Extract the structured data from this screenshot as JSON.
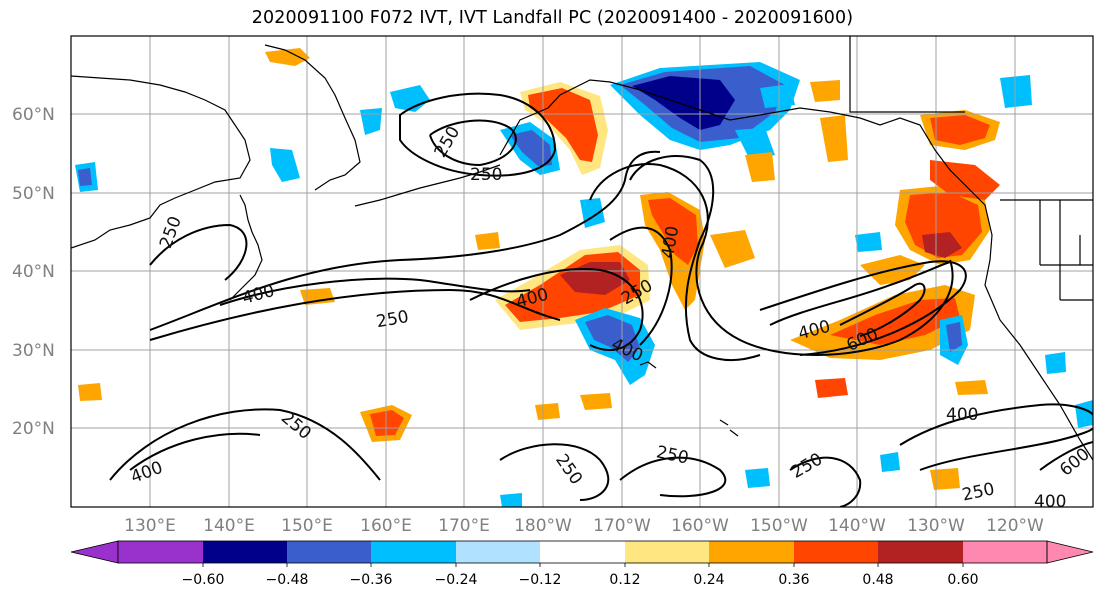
{
  "title": "2020091100 F072 IVT, IVT Landfall PC (2020091400 - 2020091600)",
  "latitude_labels": [
    "60°N",
    "50°N",
    "40°N",
    "30°N",
    "20°N"
  ],
  "longitude_labels": [
    "130°E",
    "140°E",
    "150°E",
    "160°E",
    "170°E",
    "180°W",
    "170°W",
    "160°W",
    "150°W",
    "140°W",
    "130°W",
    "120°W"
  ],
  "contour_labels": [
    "250",
    "250",
    "250",
    "400",
    "250",
    "400",
    "250",
    "400",
    "400",
    "400",
    "600",
    "250",
    "250",
    "250",
    "250",
    "400",
    "600",
    "250",
    "400"
  ],
  "colorbar": {
    "tick_labels": [
      "−0.60",
      "−0.48",
      "−0.36",
      "−0.24",
      "−0.12",
      "0.12",
      "0.24",
      "0.36",
      "0.48",
      "0.60"
    ],
    "colors": [
      "#9932cc",
      "#00008b",
      "#3a5fcd",
      "#00bfff",
      "#b0e2ff",
      "#ffffff",
      "#ffe680",
      "#ffa500",
      "#ff4500",
      "#b22222",
      "#ff88b0"
    ]
  },
  "colors": {
    "land_outline": "#000000",
    "grid": "#a0a0a0",
    "axis_label": "#808080"
  }
}
